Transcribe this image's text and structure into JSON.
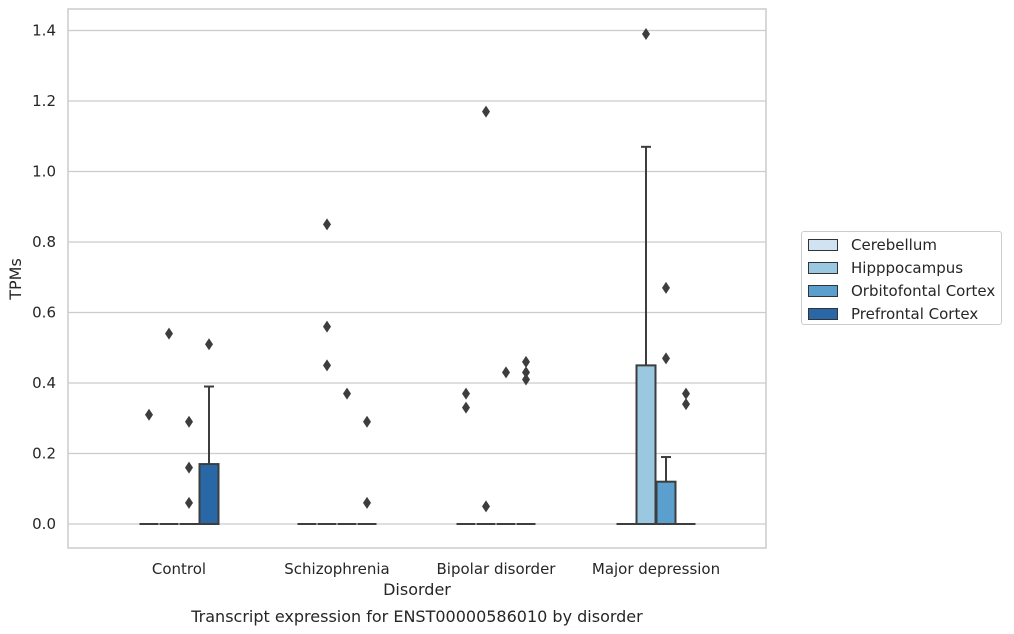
{
  "chart_data": {
    "type": "box",
    "title": "Transcript expression for ENST00000586010 by disorder",
    "xlabel": "Disorder",
    "ylabel": "TPMs",
    "ylim": [
      -0.065,
      1.46
    ],
    "yticks": [
      "0.0",
      "0.2",
      "0.4",
      "0.6",
      "0.8",
      "1.0",
      "1.2",
      "1.4"
    ],
    "grid": true,
    "legend_position": "right",
    "categories": [
      "Control",
      "Schizophrenia",
      "Bipolar disorder",
      "Major depression"
    ],
    "series": [
      {
        "name": "Cerebellum",
        "color": "#d1e2f2",
        "boxes": [
          {
            "q1": 0,
            "median": 0,
            "q3": 0,
            "whisker_low": 0,
            "whisker_high": 0,
            "outliers": [
              0.31
            ]
          },
          {
            "q1": 0,
            "median": 0,
            "q3": 0,
            "whisker_low": 0,
            "whisker_high": 0,
            "outliers": []
          },
          {
            "q1": 0,
            "median": 0,
            "q3": 0,
            "whisker_low": 0,
            "whisker_high": 0,
            "outliers": [
              0.37,
              0.33
            ]
          },
          {
            "q1": 0,
            "median": 0,
            "q3": 0,
            "whisker_low": 0,
            "whisker_high": 0,
            "outliers": []
          }
        ]
      },
      {
        "name": "Hipppocampus",
        "color": "#9ac8e0",
        "boxes": [
          {
            "q1": 0,
            "median": 0,
            "q3": 0,
            "whisker_low": 0,
            "whisker_high": 0,
            "outliers": [
              0.54
            ]
          },
          {
            "q1": 0,
            "median": 0,
            "q3": 0,
            "whisker_low": 0,
            "whisker_high": 0,
            "outliers": [
              0.85,
              0.56,
              0.45
            ]
          },
          {
            "q1": 0,
            "median": 0,
            "q3": 0,
            "whisker_low": 0,
            "whisker_high": 0,
            "outliers": [
              1.17,
              0.05
            ]
          },
          {
            "q1": 0,
            "median": 0,
            "q3": 0.45,
            "whisker_low": 0,
            "whisker_high": 1.07,
            "outliers": [
              1.39
            ]
          }
        ]
      },
      {
        "name": "Orbitofontal Cortex",
        "color": "#5a9fcd",
        "boxes": [
          {
            "q1": 0,
            "median": 0,
            "q3": 0,
            "whisker_low": 0,
            "whisker_high": 0,
            "outliers": [
              0.29,
              0.16,
              0.06
            ]
          },
          {
            "q1": 0,
            "median": 0,
            "q3": 0,
            "whisker_low": 0,
            "whisker_high": 0,
            "outliers": [
              0.37
            ]
          },
          {
            "q1": 0,
            "median": 0,
            "q3": 0,
            "whisker_low": 0,
            "whisker_high": 0,
            "outliers": [
              0.43
            ]
          },
          {
            "q1": 0,
            "median": 0,
            "q3": 0.12,
            "whisker_low": 0,
            "whisker_high": 0.19,
            "outliers": [
              0.67,
              0.47
            ]
          }
        ]
      },
      {
        "name": "Prefrontal Cortex",
        "color": "#2a67a6",
        "boxes": [
          {
            "q1": 0,
            "median": 0,
            "q3": 0.17,
            "whisker_low": 0,
            "whisker_high": 0.39,
            "outliers": [
              0.51
            ]
          },
          {
            "q1": 0,
            "median": 0,
            "q3": 0,
            "whisker_low": 0,
            "whisker_high": 0,
            "outliers": [
              0.29,
              0.06
            ]
          },
          {
            "q1": 0,
            "median": 0,
            "q3": 0,
            "whisker_low": 0,
            "whisker_high": 0,
            "outliers": [
              0.46,
              0.43,
              0.41
            ]
          },
          {
            "q1": 0,
            "median": 0,
            "q3": 0,
            "whisker_low": 0,
            "whisker_high": 0,
            "outliers": [
              0.37,
              0.34
            ]
          }
        ]
      }
    ]
  }
}
